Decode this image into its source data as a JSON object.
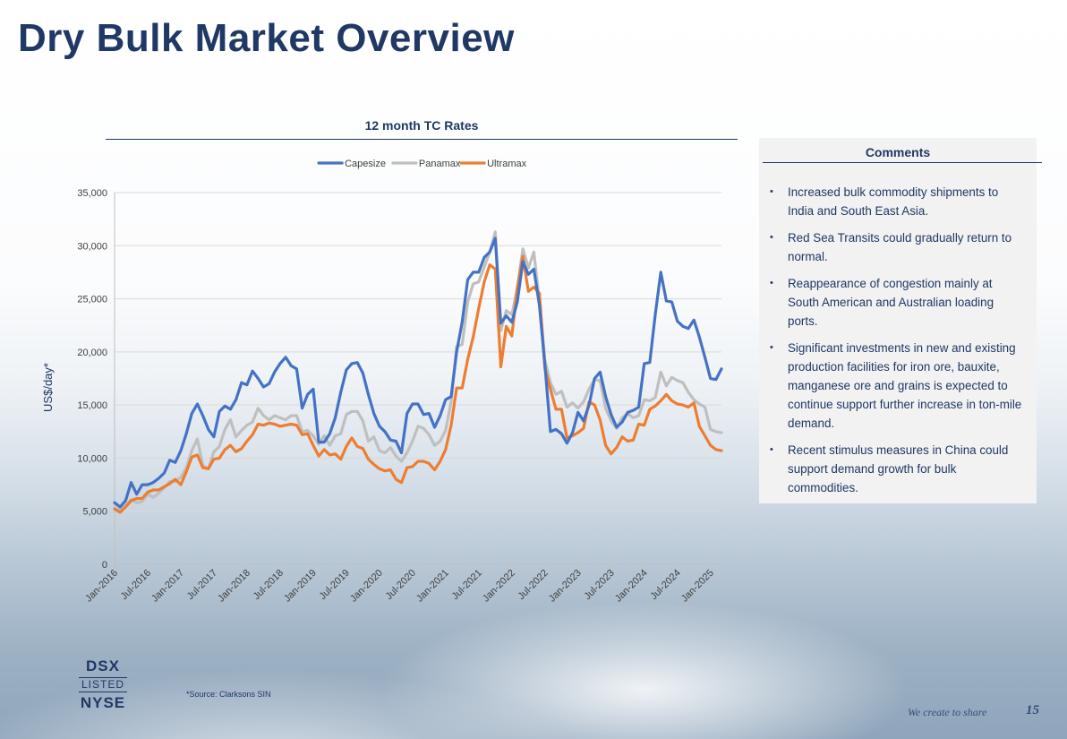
{
  "page": {
    "title": "Dry Bulk Market Overview",
    "source_note": "*Source: Clarksons SIN",
    "tagline": "We create to share",
    "page_number": "15"
  },
  "logo": {
    "top": "DSX",
    "middle": "LISTED",
    "bottom": "NYSE"
  },
  "comments": {
    "title": "Comments",
    "bullet_glyph": "•",
    "items": [
      "Increased bulk commodity shipments to India and South East Asia.",
      "Red Sea Transits could gradually return to normal.",
      "Reappearance of congestion mainly at South American and Australian loading ports.",
      "Significant investments in new and existing production facilities for iron ore, bauxite, manganese ore and grains is expected to continue support further increase in ton-mile demand.",
      "Recent stimulus measures in China could support demand growth for bulk commodities."
    ]
  },
  "chart_data": {
    "type": "line",
    "title": "12 month TC Rates",
    "xlabel": "",
    "ylabel": "US$/day*",
    "ylim": [
      0,
      35000
    ],
    "yticks": [
      0,
      5000,
      10000,
      15000,
      20000,
      25000,
      30000,
      35000
    ],
    "ytick_labels": [
      "0",
      "5,000",
      "10,000",
      "15,000",
      "20,000",
      "25,000",
      "30,000",
      "35,000"
    ],
    "xtick_labels": [
      "Jan-2016",
      "Jul-2016",
      "Jan-2017",
      "Jul-2017",
      "Jan-2018",
      "Jul-2018",
      "Jan-2019",
      "Jul-2019",
      "Jan-2020",
      "Jul-2020",
      "Jan-2021",
      "Jul-2021",
      "Jan-2022",
      "Jul-2022",
      "Jan-2023",
      "Jul-2023",
      "Jan-2024",
      "Jul-2024",
      "Jan-2025"
    ],
    "xtick_month_index": [
      0,
      6,
      12,
      18,
      24,
      30,
      36,
      42,
      48,
      54,
      60,
      66,
      72,
      78,
      84,
      90,
      96,
      102,
      108
    ],
    "legend_position": "top-center",
    "series": [
      {
        "name": "Capesize",
        "color": "#4472c4",
        "values": [
          5800,
          5400,
          6000,
          7700,
          6600,
          7500,
          7500,
          7700,
          8100,
          8600,
          9800,
          9600,
          10700,
          12300,
          14200,
          15100,
          14000,
          12700,
          12000,
          14400,
          14900,
          14600,
          15500,
          17100,
          16900,
          18200,
          17500,
          16700,
          17000,
          18100,
          18900,
          19500,
          18700,
          18400,
          14700,
          16000,
          16500,
          11500,
          11500,
          12300,
          13800,
          16200,
          18300,
          18900,
          19000,
          18000,
          16000,
          14200,
          13000,
          12500,
          11700,
          11600,
          10500,
          14200,
          15100,
          15100,
          14100,
          14200,
          12900,
          14000,
          15500,
          15800,
          20000,
          22800,
          26800,
          27500,
          27500,
          28900,
          29400,
          30700,
          22700,
          23400,
          22800,
          24700,
          28500,
          27300,
          27800,
          24400,
          18700,
          12500,
          12700,
          12300,
          11400,
          12400,
          14300,
          13500,
          15000,
          17500,
          18100,
          15800,
          14100,
          12900,
          13400,
          14300,
          14500,
          14800,
          18900,
          19000,
          23500,
          27500,
          24800,
          24700,
          22900,
          22400,
          22200,
          23000,
          21400,
          19500,
          17500,
          17400,
          18400
        ]
      },
      {
        "name": "Panamax",
        "color": "#bfbfbf",
        "values": [
          5300,
          5100,
          5500,
          6100,
          5800,
          5900,
          6600,
          6300,
          6700,
          7200,
          7800,
          7800,
          8200,
          9100,
          10700,
          11800,
          9300,
          9000,
          10600,
          11100,
          12700,
          13600,
          12000,
          12600,
          13100,
          13400,
          14700,
          14000,
          13600,
          14000,
          13800,
          13600,
          14000,
          14000,
          12500,
          12600,
          12100,
          11300,
          12100,
          11200,
          12100,
          12300,
          14100,
          14400,
          14400,
          13500,
          11600,
          12000,
          10700,
          10500,
          11000,
          10200,
          9700,
          10500,
          11600,
          13000,
          12800,
          12200,
          11200,
          11600,
          12600,
          15300,
          20500,
          20700,
          24700,
          26400,
          26600,
          28000,
          29400,
          31300,
          22000,
          23900,
          23500,
          26000,
          29700,
          27900,
          29400,
          24800,
          19200,
          17100,
          16000,
          16300,
          14800,
          15200,
          14700,
          15300,
          16500,
          17400,
          17300,
          14700,
          13500,
          12800,
          13800,
          14200,
          13800,
          14000,
          15500,
          15400,
          15700,
          18100,
          16800,
          17600,
          17300,
          17100,
          16200,
          15500,
          15100,
          14800,
          12700,
          12500,
          12400
        ]
      },
      {
        "name": "Ultramax",
        "color": "#ed7d31",
        "values": [
          5200,
          4900,
          5400,
          6000,
          6200,
          6200,
          6800,
          7000,
          7000,
          7300,
          7600,
          8000,
          7500,
          8700,
          10100,
          10300,
          9100,
          9000,
          9900,
          10000,
          10800,
          11200,
          10600,
          10900,
          11600,
          12200,
          13200,
          13100,
          13300,
          13200,
          13000,
          13100,
          13200,
          13100,
          12200,
          12300,
          11200,
          10200,
          10800,
          10300,
          10400,
          9900,
          11100,
          11900,
          11100,
          10900,
          9900,
          9400,
          9000,
          8800,
          8900,
          8000,
          7700,
          9100,
          9200,
          9700,
          9700,
          9500,
          8900,
          9700,
          10800,
          13100,
          16600,
          16600,
          19300,
          21400,
          24100,
          26600,
          28200,
          27800,
          18600,
          22400,
          21500,
          26000,
          29000,
          25700,
          26100,
          25500,
          18400,
          16500,
          14600,
          14600,
          11900,
          12100,
          12400,
          12800,
          15300,
          15000,
          13600,
          11200,
          10400,
          11000,
          12000,
          11600,
          11700,
          13200,
          13100,
          14600,
          14900,
          15400,
          16000,
          15400,
          15100,
          15000,
          14800,
          15200,
          13000,
          12100,
          11200,
          10800,
          10700
        ]
      }
    ]
  }
}
